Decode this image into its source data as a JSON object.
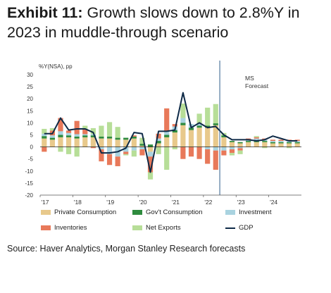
{
  "title": {
    "exhibit": "Exhibit 11:",
    "text_line1": "Growth slows down to 2.8%Y in",
    "text_line2": "2023 in muddle-through scenario"
  },
  "source": "Source: Haver Analytics, Morgan Stanley Research forecasts",
  "chart_data": {
    "type": "bar",
    "unit_label": "%Y(NSA), pp",
    "ylim": [
      -20,
      30
    ],
    "y_ticks": [
      30,
      25,
      20,
      15,
      10,
      5,
      0,
      -5,
      -10,
      -15,
      -20
    ],
    "x_tick_labels": [
      "'17",
      "'18",
      "'19",
      "'20",
      "'21",
      "'22",
      "'23",
      "'24"
    ],
    "annotation": [
      "MS",
      "Forecast"
    ],
    "forecast_start_quarter": "2022Q3",
    "colors": {
      "Private Consumption": "#e8c98c",
      "Gov't Consumption": "#2e8b3e",
      "Investment": "#a9d3e0",
      "Inventories": "#e8795a",
      "Net Exports": "#b7de98",
      "GDP": "#0e2a47"
    },
    "categories": [
      "2017Q1",
      "2017Q2",
      "2017Q3",
      "2017Q4",
      "2018Q1",
      "2018Q2",
      "2018Q3",
      "2018Q4",
      "2019Q1",
      "2019Q2",
      "2019Q3",
      "2019Q4",
      "2020Q1",
      "2020Q2",
      "2020Q3",
      "2020Q4",
      "2021Q1",
      "2021Q2",
      "2021Q3",
      "2021Q4",
      "2022Q1",
      "2022Q2",
      "2022Q3",
      "2022Q4",
      "2023Q1",
      "2023Q2",
      "2023Q3",
      "2023Q4",
      "2024Q1",
      "2024Q2",
      "2024Q3",
      "2024Q4"
    ],
    "series": [
      {
        "name": "Private Consumption",
        "values": [
          3.5,
          3.0,
          4.0,
          4.0,
          3.5,
          4.0,
          4.0,
          3.5,
          3.5,
          3.0,
          3.0,
          3.5,
          0.5,
          -2.0,
          1.5,
          4.0,
          6.0,
          9.0,
          7.0,
          8.0,
          8.0,
          9.0,
          4.0,
          2.0,
          1.5,
          2.0,
          2.0,
          2.0,
          1.5,
          1.5,
          1.5,
          1.5
        ]
      },
      {
        "name": "Gov't Consumption",
        "values": [
          1.0,
          0.8,
          1.0,
          0.8,
          0.8,
          0.8,
          0.8,
          0.8,
          0.8,
          0.8,
          0.8,
          0.8,
          0.8,
          1.0,
          1.0,
          1.0,
          1.0,
          1.0,
          1.0,
          0.8,
          0.8,
          0.8,
          0.8,
          0.5,
          0.5,
          0.5,
          0.5,
          0.5,
          0.5,
          0.5,
          0.5,
          0.5
        ]
      },
      {
        "name": "Investment",
        "values": [
          1.0,
          1.0,
          1.5,
          1.0,
          1.0,
          0.5,
          0.5,
          -1.0,
          -3.0,
          -4.0,
          -2.0,
          -1.5,
          -1.0,
          -2.0,
          1.0,
          1.5,
          1.5,
          2.0,
          1.5,
          1.0,
          -1.0,
          -1.5,
          -1.5,
          -1.0,
          -0.5,
          0.5,
          1.0,
          0.5,
          0.5,
          0.5,
          0.5,
          0.5
        ]
      },
      {
        "name": "Inventories",
        "values": [
          -2.0,
          2.0,
          5.5,
          1.0,
          5.5,
          2.0,
          -0.5,
          -5.0,
          -4.5,
          -4.0,
          -1.0,
          0.5,
          -2.5,
          -6.5,
          2.0,
          9.5,
          1.0,
          -5.0,
          -4.0,
          -5.0,
          -6.0,
          -8.0,
          -2.0,
          -1.5,
          -1.0,
          0.5,
          0.5,
          0.5,
          0.5,
          0.5,
          0.5,
          0.5
        ]
      },
      {
        "name": "Net Exports",
        "values": [
          2.0,
          1.0,
          -2.0,
          -3.0,
          -4.0,
          1.5,
          2.5,
          4.5,
          6.0,
          4.5,
          -0.5,
          -2.5,
          2.5,
          -3.0,
          -3.0,
          -9.5,
          -1.0,
          6.0,
          0.0,
          4.0,
          7.5,
          8.0,
          1.0,
          -1.0,
          -1.5,
          0.0,
          0.5,
          -0.5,
          0.0,
          0.0,
          -0.5,
          0.0
        ]
      },
      {
        "name": "GDP",
        "values": [
          5.5,
          5.5,
          12.0,
          7.0,
          7.5,
          7.5,
          6.0,
          -2.5,
          -2.5,
          -2.0,
          -0.5,
          6.0,
          5.5,
          -10.5,
          6.5,
          6.5,
          7.0,
          22.5,
          8.0,
          10.0,
          8.0,
          8.5,
          5.0,
          3.0,
          3.0,
          3.0,
          2.5,
          3.0,
          4.5,
          3.5,
          2.5,
          2.5
        ]
      }
    ]
  }
}
